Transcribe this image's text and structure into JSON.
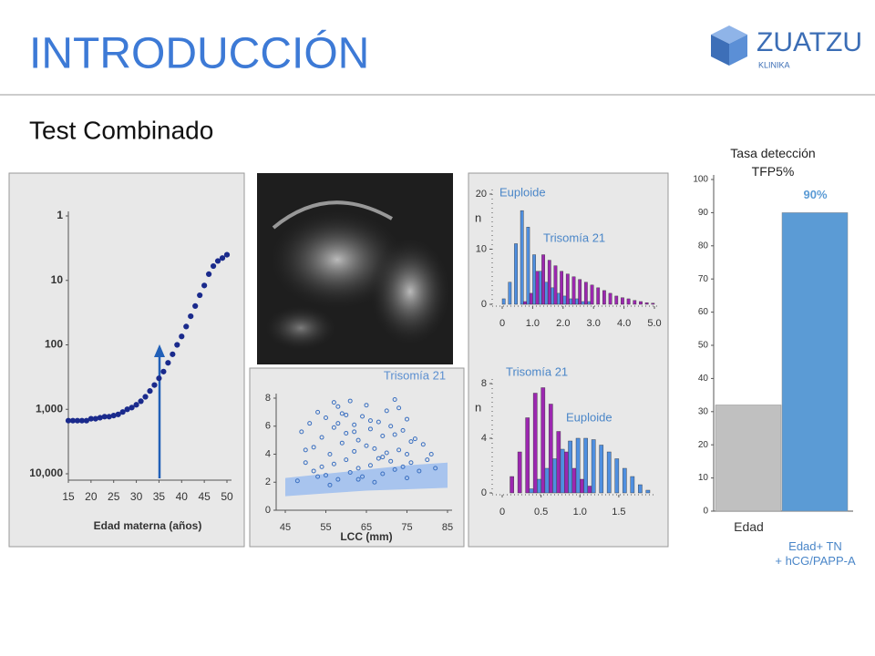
{
  "title": "INTRODUCCIÓN",
  "logo": {
    "name": "ZUATZU",
    "sub": "KLINIKA"
  },
  "subtitle": "Test Combinado",
  "chart_data": [
    {
      "type": "scatter",
      "xlabel": "Edad materna (años)",
      "log": true,
      "color": "#1a2a8c",
      "x": [
        15,
        16,
        17,
        18,
        19,
        20,
        21,
        22,
        23,
        24,
        25,
        26,
        27,
        28,
        29,
        30,
        31,
        32,
        33,
        34,
        35,
        36,
        37,
        38,
        39,
        40,
        41,
        42,
        43,
        44,
        45,
        46,
        47,
        48,
        49,
        50
      ],
      "values": [
        1500,
        1500,
        1500,
        1500,
        1500,
        1400,
        1400,
        1350,
        1300,
        1300,
        1250,
        1200,
        1100,
        1000,
        940,
        850,
        750,
        640,
        520,
        420,
        330,
        260,
        190,
        140,
        100,
        74,
        52,
        36,
        25,
        17,
        12,
        8,
        6,
        5,
        4.5,
        4
      ],
      "xlim": [
        15,
        50
      ],
      "xticks": [
        15,
        20,
        25,
        30,
        35,
        40,
        45,
        50
      ],
      "ylim": [
        10000,
        1
      ],
      "yticks": [
        1,
        10,
        100,
        {
          "value": 1000,
          "label": "1,000"
        },
        {
          "value": 10000,
          "label": "10,000"
        }
      ]
    },
    {
      "type": "scatter",
      "title": "Trisomía 21",
      "xlabel": "LCC (mm)",
      "color": "#3a6fc0",
      "hollow": true,
      "x": [
        48,
        49,
        50,
        51,
        52,
        52,
        53,
        54,
        54,
        55,
        55,
        56,
        56,
        57,
        57,
        58,
        58,
        59,
        59,
        60,
        60,
        61,
        61,
        62,
        62,
        63,
        63,
        64,
        64,
        65,
        65,
        66,
        66,
        67,
        67,
        68,
        68,
        69,
        69,
        70,
        70,
        71,
        71,
        72,
        72,
        73,
        73,
        74,
        74,
        75,
        75,
        76,
        76,
        77,
        78,
        79,
        80,
        81,
        82,
        50,
        53,
        57,
        60,
        63,
        66,
        69,
        72,
        75,
        58,
        62
      ],
      "values": [
        2.1,
        5.6,
        3.4,
        6.2,
        2.8,
        4.5,
        7.0,
        3.1,
        5.2,
        2.5,
        6.6,
        4.0,
        1.8,
        5.9,
        3.3,
        7.4,
        2.2,
        4.8,
        6.9,
        3.6,
        5.5,
        2.7,
        7.8,
        4.2,
        6.1,
        3.0,
        5.0,
        2.4,
        6.7,
        4.6,
        7.5,
        3.2,
        5.8,
        2.0,
        4.4,
        6.3,
        3.7,
        5.3,
        2.6,
        7.1,
        4.1,
        3.5,
        6.0,
        2.9,
        5.4,
        4.3,
        7.3,
        3.1,
        5.7,
        2.3,
        6.5,
        4.9,
        3.4,
        5.1,
        2.8,
        4.7,
        3.6,
        4.0,
        3.0,
        4.3,
        2.4,
        7.7,
        6.8,
        2.2,
        6.4,
        3.8,
        7.9,
        4.0,
        6.2,
        5.6
      ],
      "band": {
        "x": [
          45,
          55,
          65,
          75,
          85
        ],
        "lower": [
          1.0,
          1.2,
          1.4,
          1.5,
          1.6
        ],
        "upper": [
          2.3,
          2.6,
          2.9,
          3.2,
          3.4
        ],
        "color": "#a8c4ee"
      },
      "xlim": [
        45,
        85
      ],
      "xticks": [
        45,
        55,
        65,
        75,
        85
      ],
      "ylim": [
        0,
        8
      ],
      "yticks": [
        0,
        2,
        4,
        6,
        8
      ]
    },
    {
      "type": "histogram",
      "ylabel": "n",
      "bins": [
        0,
        0.2,
        0.4,
        0.6,
        0.8,
        1.0,
        1.2,
        1.4,
        1.6,
        1.8,
        2.0,
        2.2,
        2.4,
        2.6,
        2.8,
        3.0,
        3.2,
        3.4,
        3.6,
        3.8,
        4.0,
        4.2,
        4.4,
        4.6,
        4.8,
        5.0
      ],
      "series": [
        {
          "name": "Euploide",
          "color": "#4f8fe0",
          "values": [
            1,
            4,
            11,
            17,
            14,
            9,
            6,
            4,
            3,
            2,
            1.5,
            1,
            1,
            0.5,
            0.5,
            0,
            0,
            0,
            0,
            0,
            0,
            0,
            0,
            0,
            0
          ]
        },
        {
          "name": "Trisomía 21",
          "color": "#9c27b0",
          "values": [
            0,
            0,
            0,
            0.5,
            2,
            6,
            9,
            8,
            7,
            6,
            5.5,
            5,
            4.5,
            4,
            3.5,
            3,
            2.5,
            2,
            1.5,
            1.2,
            1,
            0.7,
            0.5,
            0.3,
            0.2
          ]
        }
      ],
      "xlim": [
        0,
        5
      ],
      "xticks": [
        0,
        {
          "value": 1,
          "label": "1.0"
        },
        {
          "value": 2,
          "label": "2.0"
        },
        {
          "value": 3,
          "label": "3.0"
        },
        {
          "value": 4,
          "label": "4.0"
        },
        {
          "value": 5,
          "label": "5.0"
        }
      ],
      "ylim": [
        0,
        20
      ],
      "yticks": [
        0,
        10,
        20
      ]
    },
    {
      "type": "histogram",
      "ylabel": "n",
      "bins": [
        0,
        0.1,
        0.2,
        0.3,
        0.4,
        0.5,
        0.6,
        0.7,
        0.8,
        0.9,
        1.0,
        1.1,
        1.2,
        1.3,
        1.4,
        1.5,
        1.6,
        1.7,
        1.8,
        1.9
      ],
      "series": [
        {
          "name": "Trisomía 21",
          "color": "#9c27b0",
          "values": [
            0,
            1.2,
            3,
            5.5,
            7.3,
            7.7,
            6.5,
            4.5,
            3,
            1.8,
            1,
            0.5,
            0,
            0,
            0,
            0,
            0,
            0,
            0
          ]
        },
        {
          "name": "Euploide",
          "color": "#4f8fe0",
          "values": [
            0,
            0,
            0,
            0.3,
            1,
            1.8,
            2.5,
            3.2,
            3.8,
            4,
            4,
            3.9,
            3.5,
            3,
            2.5,
            1.8,
            1.2,
            0.6,
            0.2
          ]
        }
      ],
      "xlim": [
        0,
        1.9
      ],
      "xticks": [
        0,
        0.5,
        {
          "value": 1,
          "label": "1.0"
        },
        1.5
      ],
      "ylim": [
        0,
        8
      ],
      "yticks": [
        0,
        4,
        8
      ]
    },
    {
      "type": "bar",
      "title": "Tasa detección\nTFP5%",
      "categories": [
        "Edad",
        "Edad+ TN\n+ hCG/PAPP-A"
      ],
      "values": [
        32,
        90
      ],
      "value_labels": [
        null,
        "90%"
      ],
      "colors": [
        "#c0c0c0",
        "#5b9bd5"
      ],
      "ylim": [
        0,
        100
      ],
      "yticks": [
        0,
        10,
        20,
        30,
        40,
        50,
        60,
        70,
        80,
        90,
        100
      ]
    }
  ]
}
